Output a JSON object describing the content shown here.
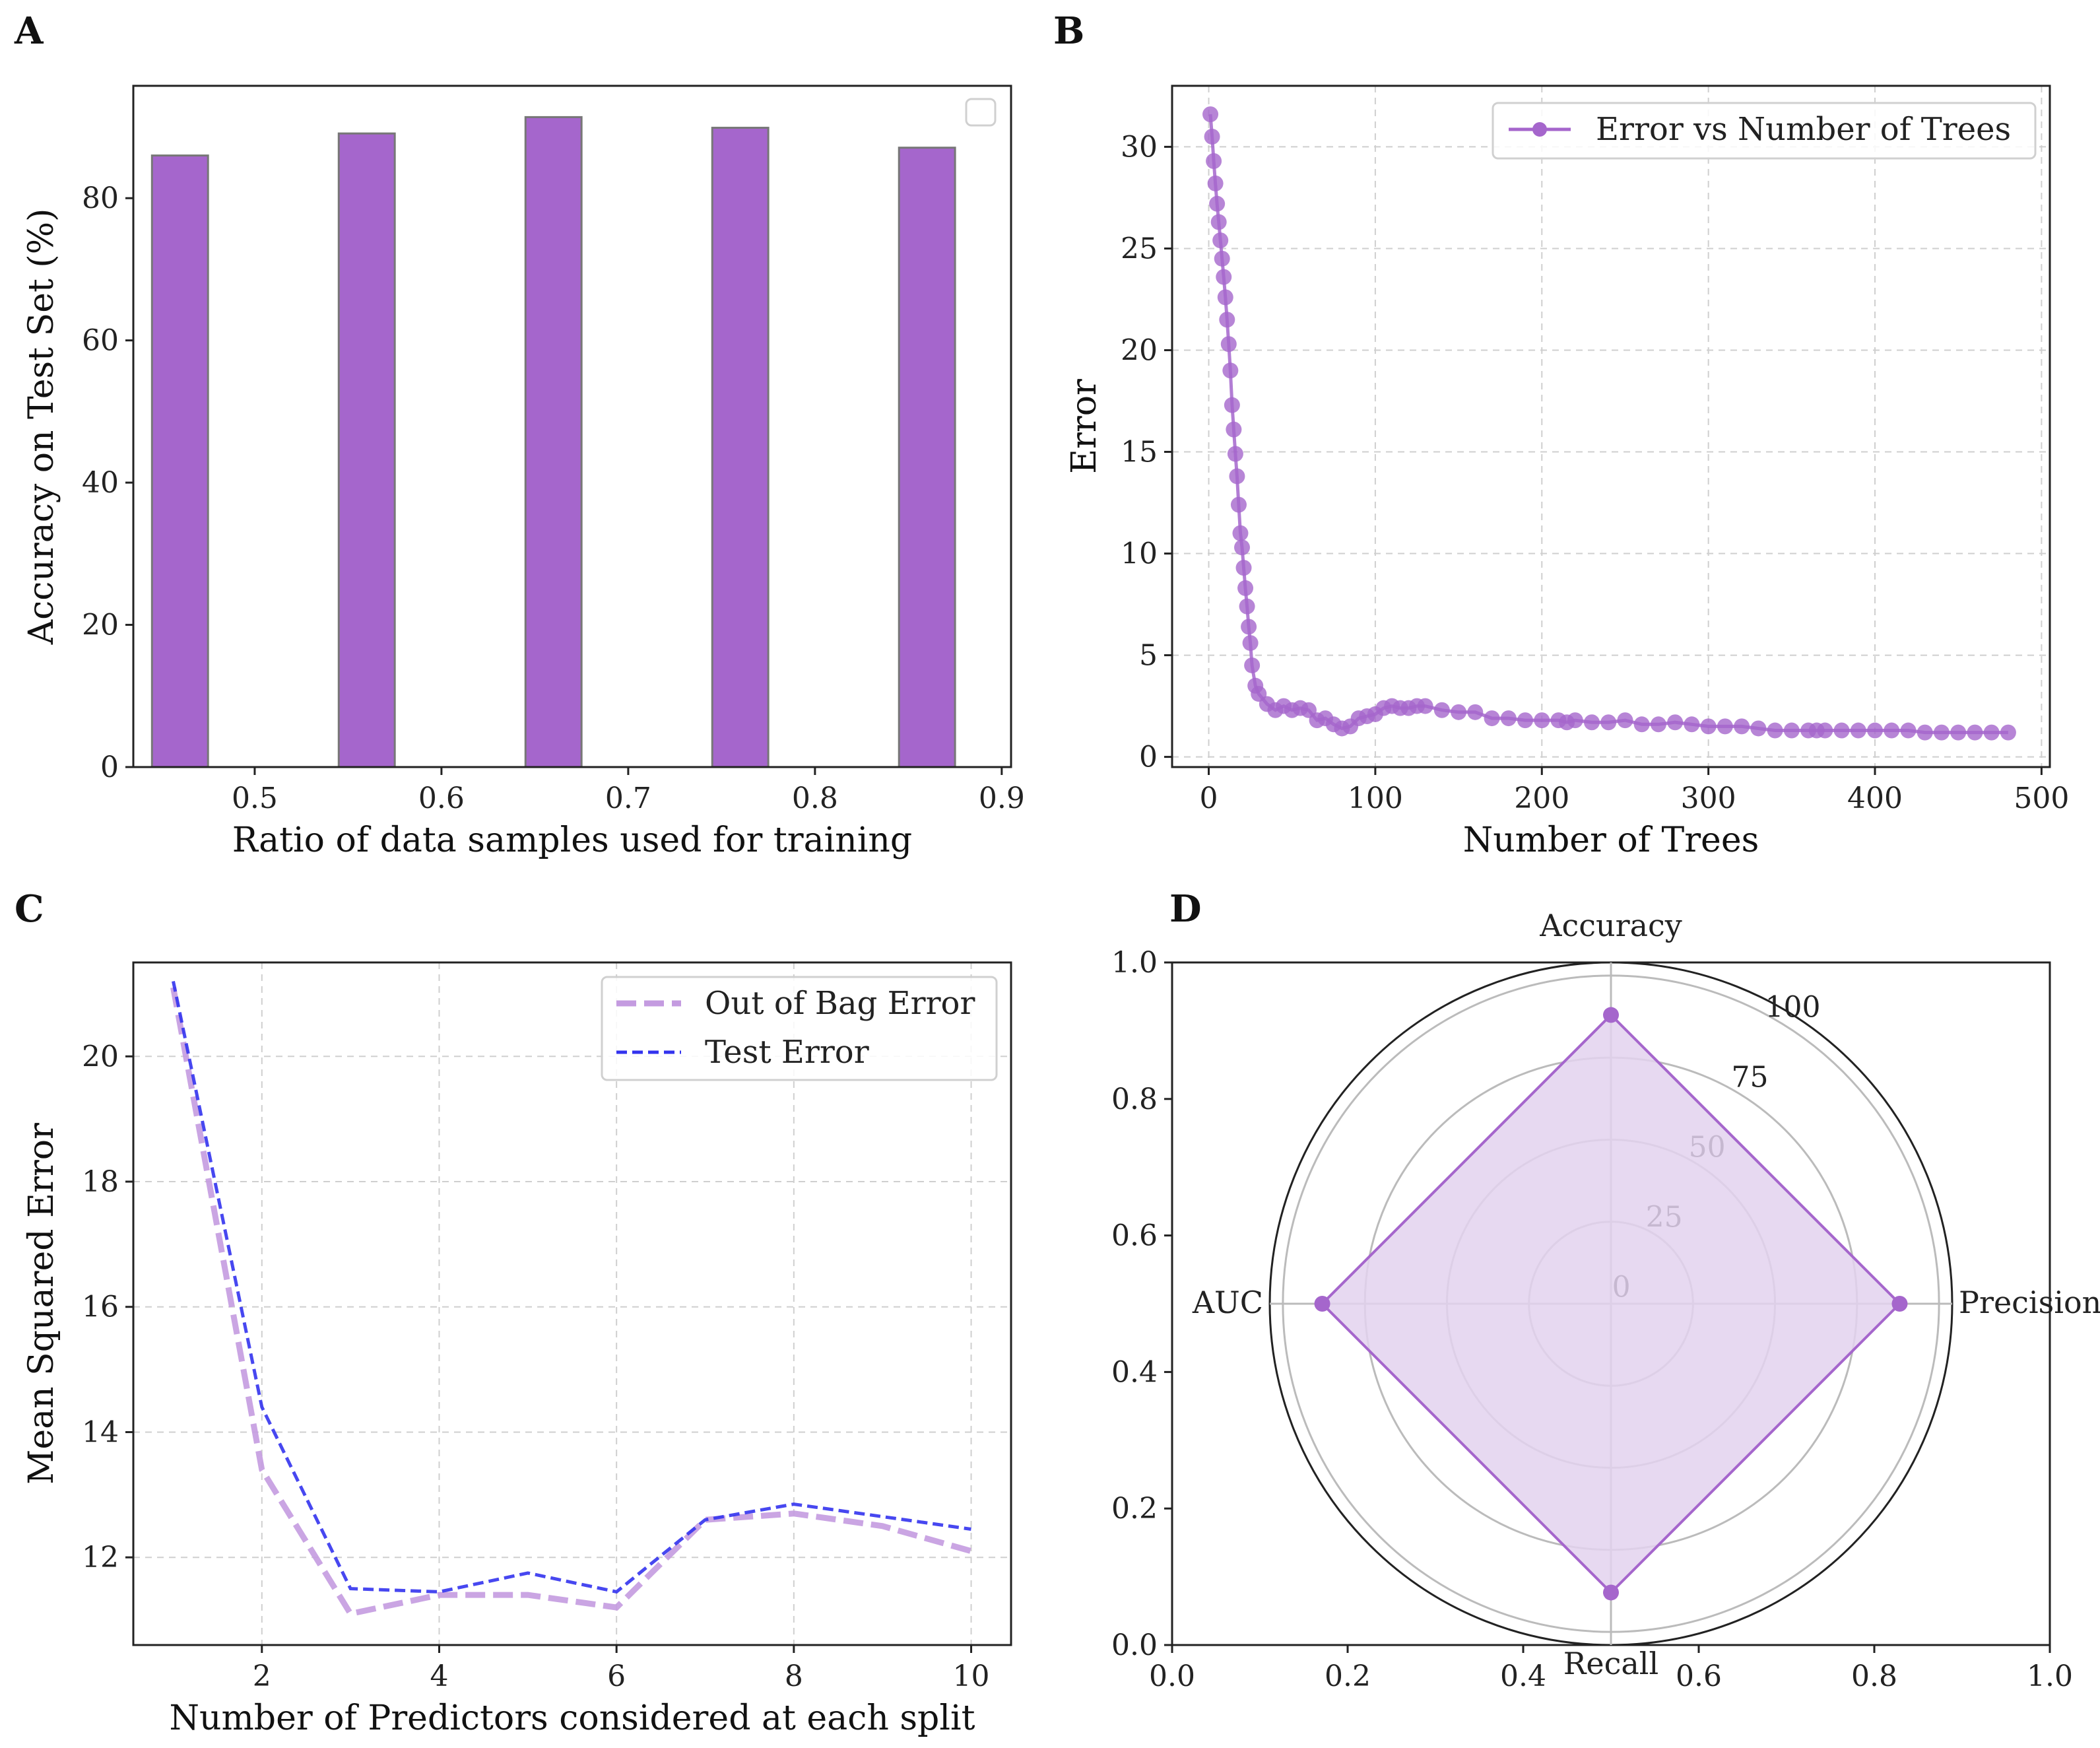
{
  "panels": {
    "A": {
      "letter": "A"
    },
    "B": {
      "letter": "B"
    },
    "C": {
      "letter": "C"
    },
    "D": {
      "letter": "D"
    }
  },
  "colors": {
    "purple": "#a566cc",
    "purple_light": "#c49be0",
    "blue": "#3333ee",
    "radar_fill": "#e3d2ef",
    "bar_edge": "#777777"
  },
  "chart_data": [
    {
      "id": "A",
      "type": "bar",
      "title": "",
      "categories": [
        0.46,
        0.56,
        0.66,
        0.76,
        0.86
      ],
      "values": [
        86.0,
        89.1,
        91.4,
        89.9,
        87.1
      ],
      "bar_width": 0.03,
      "xlabel": "Ratio of data samples used for training",
      "ylabel": "Accuracy on Test Set (%)",
      "xlim": [
        0.435,
        0.905
      ],
      "ylim": [
        0,
        95.8
      ],
      "xticks": [
        0.5,
        0.6,
        0.7,
        0.8,
        0.9
      ],
      "xtick_labels": [
        "0.5",
        "0.6",
        "0.7",
        "0.8",
        "0.9"
      ],
      "yticks": [
        0,
        20,
        40,
        60,
        80
      ],
      "ytick_labels": [
        "0",
        "20",
        "40",
        "60",
        "80"
      ],
      "grid": false,
      "legend": "top-right (empty)"
    },
    {
      "id": "B",
      "type": "line",
      "title": "",
      "series": [
        {
          "name": "Error vs Number of Trees",
          "x": [
            1,
            2,
            3,
            4,
            5,
            6,
            7,
            8,
            9,
            10,
            11,
            12,
            13,
            14,
            15,
            16,
            17,
            18,
            19,
            20,
            21,
            22,
            23,
            24,
            25,
            26,
            28,
            30,
            35,
            40,
            45,
            50,
            55,
            60,
            65,
            70,
            75,
            80,
            85,
            90,
            95,
            100,
            105,
            110,
            115,
            120,
            125,
            130,
            140,
            150,
            160,
            170,
            180,
            190,
            200,
            210,
            215,
            220,
            230,
            240,
            250,
            260,
            270,
            280,
            290,
            300,
            310,
            320,
            330,
            340,
            350,
            360,
            365,
            370,
            380,
            390,
            400,
            410,
            420,
            430,
            440,
            450,
            460,
            470,
            480
          ],
          "y": [
            31.6,
            30.5,
            29.3,
            28.2,
            27.2,
            26.3,
            25.4,
            24.5,
            23.6,
            22.6,
            21.5,
            20.3,
            19.0,
            17.3,
            16.1,
            14.9,
            13.8,
            12.4,
            11.0,
            10.3,
            9.3,
            8.3,
            7.4,
            6.4,
            5.6,
            4.5,
            3.5,
            3.1,
            2.6,
            2.3,
            2.5,
            2.3,
            2.4,
            2.3,
            1.8,
            1.9,
            1.6,
            1.4,
            1.5,
            1.9,
            2.0,
            2.1,
            2.4,
            2.5,
            2.4,
            2.4,
            2.5,
            2.5,
            2.3,
            2.2,
            2.2,
            1.9,
            1.9,
            1.8,
            1.8,
            1.8,
            1.7,
            1.8,
            1.7,
            1.7,
            1.8,
            1.6,
            1.6,
            1.7,
            1.6,
            1.5,
            1.5,
            1.5,
            1.4,
            1.3,
            1.3,
            1.3,
            1.3,
            1.3,
            1.3,
            1.3,
            1.3,
            1.3,
            1.3,
            1.2,
            1.2,
            1.2,
            1.2,
            1.2,
            1.2
          ]
        }
      ],
      "xlabel": "Number of Trees",
      "ylabel": "Error",
      "xlim": [
        -22,
        505
      ],
      "ylim": [
        -0.5,
        33
      ],
      "xticks": [
        0,
        100,
        200,
        300,
        400,
        500
      ],
      "xtick_labels": [
        "0",
        "100",
        "200",
        "300",
        "400",
        "500"
      ],
      "yticks": [
        0,
        5,
        10,
        15,
        20,
        25,
        30
      ],
      "ytick_labels": [
        "0",
        "5",
        "10",
        "15",
        "20",
        "25",
        "30"
      ],
      "grid": true,
      "legend": "top-right"
    },
    {
      "id": "C",
      "type": "line",
      "title": "",
      "x": [
        1,
        2,
        3,
        4,
        5,
        6,
        7,
        8,
        9,
        10
      ],
      "series": [
        {
          "name": "Out of Bag Error",
          "values": [
            21.1,
            13.4,
            11.1,
            11.4,
            11.4,
            11.2,
            12.6,
            12.7,
            12.5,
            12.1
          ]
        },
        {
          "name": "Test Error",
          "values": [
            21.2,
            14.4,
            11.5,
            11.45,
            11.75,
            11.45,
            12.6,
            12.85,
            12.65,
            12.45
          ]
        }
      ],
      "xlabel": "Number of Predictors considered at each split",
      "ylabel": "Mean Squared Error",
      "xlim": [
        0.55,
        10.45
      ],
      "ylim": [
        10.6,
        21.5
      ],
      "xticks": [
        2,
        4,
        6,
        8,
        10
      ],
      "xtick_labels": [
        "2",
        "4",
        "6",
        "8",
        "10"
      ],
      "yticks": [
        12,
        14,
        16,
        18,
        20
      ],
      "ytick_labels": [
        "12",
        "14",
        "16",
        "18",
        "20"
      ],
      "grid": true,
      "legend": "top-right"
    },
    {
      "id": "D",
      "type": "radar",
      "title": "",
      "categories": [
        "Accuracy",
        "Precision",
        "Recall",
        "AUC"
      ],
      "values": [
        88,
        88,
        88,
        88
      ],
      "rmax": 104,
      "rticks": [
        0,
        25,
        50,
        75,
        100
      ],
      "rtick_labels": [
        "0",
        "25",
        "50",
        "75",
        "100"
      ],
      "xlim": [
        0,
        1
      ],
      "ylim": [
        0,
        1
      ],
      "xticks": [
        0.0,
        0.2,
        0.4,
        0.6,
        0.8,
        1.0
      ],
      "xtick_labels": [
        "0.0",
        "0.2",
        "0.4",
        "0.6",
        "0.8",
        "1.0"
      ],
      "yticks": [
        0.0,
        0.2,
        0.4,
        0.6,
        0.8,
        1.0
      ],
      "ytick_labels": [
        "0.0",
        "0.2",
        "0.4",
        "0.6",
        "0.8",
        "1.0"
      ],
      "grid": true
    }
  ]
}
